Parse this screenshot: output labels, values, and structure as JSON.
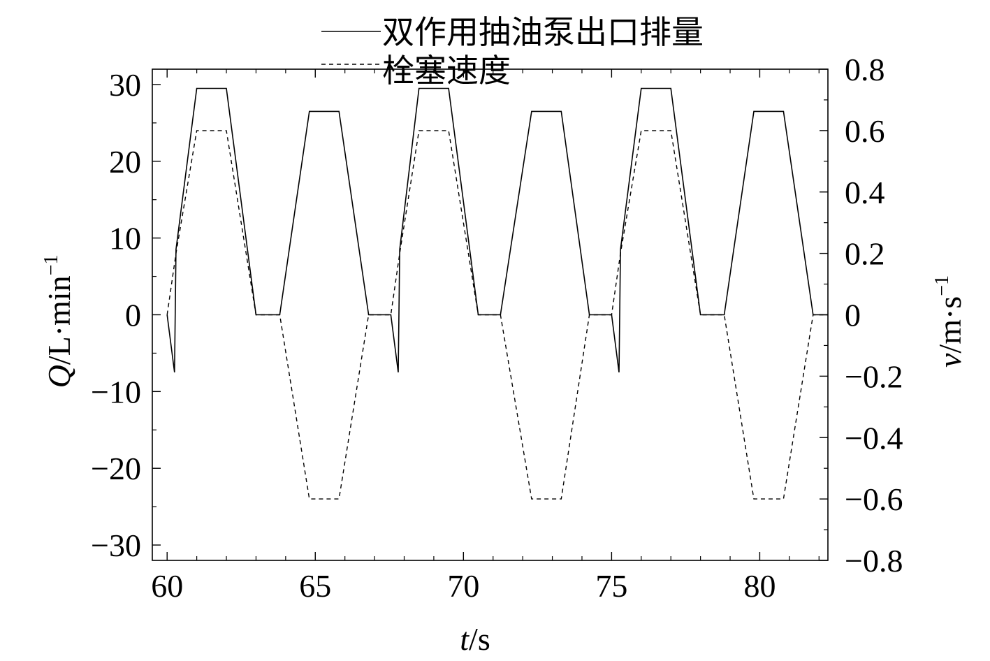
{
  "chart_data": {
    "type": "line",
    "title": "",
    "legend": {
      "placement": "top-center",
      "entries": [
        {
          "label": "双作用抽油泵出口排量",
          "style": "solid"
        },
        {
          "label": "栓塞速度",
          "style": "dashed"
        }
      ]
    },
    "xlabel": {
      "symbol": "t",
      "unit": "/s"
    },
    "ylabel_left": {
      "symbol": "Q",
      "unit": "/L·min",
      "sup": "−1"
    },
    "ylabel_right": {
      "symbol": "v",
      "unit": "/m·s",
      "sup": "−1"
    },
    "xlim": [
      59.5,
      82.3
    ],
    "ylim_left": [
      -32,
      32
    ],
    "ylim_right": [
      -0.8,
      0.8
    ],
    "xticks": [
      60,
      65,
      70,
      75,
      80
    ],
    "xtick_labels": [
      "60",
      "65",
      "70",
      "75",
      "80"
    ],
    "yticks_left": [
      30,
      20,
      10,
      0,
      -10,
      -20,
      -30
    ],
    "ytick_labels_left": [
      "30",
      "20",
      "10",
      "0",
      "−10",
      "−20",
      "−30"
    ],
    "yticks_right": [
      0.8,
      0.6,
      0.4,
      0.2,
      0,
      -0.2,
      -0.4,
      -0.6,
      -0.8
    ],
    "ytick_labels_right": [
      "0.8",
      "0.6",
      "0.4",
      "0.2",
      "0",
      "−0.2",
      "−0.4",
      "−0.6",
      "−0.8"
    ],
    "grid": false,
    "series": [
      {
        "name": "双作用抽油泵出口排量",
        "axis": "left",
        "style": "solid",
        "x": [
          60.0,
          60.25,
          60.3,
          61.0,
          62.0,
          63.0,
          63.8,
          64.8,
          65.8,
          66.8,
          67.55,
          67.8,
          67.85,
          68.5,
          69.5,
          70.5,
          71.25,
          72.3,
          73.3,
          74.25,
          75.0,
          75.25,
          75.3,
          76.0,
          77.0,
          78.0,
          78.8,
          79.8,
          80.8,
          81.8,
          82.3
        ],
        "y": [
          0,
          -7.5,
          8.5,
          29.5,
          29.5,
          0,
          0,
          26.5,
          26.5,
          0,
          0,
          -7.5,
          8.5,
          29.5,
          29.5,
          0,
          0,
          26.5,
          26.5,
          0,
          0,
          -7.5,
          8.5,
          29.5,
          29.5,
          0,
          0,
          26.5,
          26.5,
          0,
          0
        ]
      },
      {
        "name": "栓塞速度",
        "axis": "right",
        "style": "dashed",
        "x": [
          60.0,
          60.3,
          61.0,
          62.0,
          63.0,
          63.8,
          64.8,
          65.8,
          66.8,
          67.55,
          67.85,
          68.5,
          69.5,
          70.5,
          71.25,
          72.3,
          73.3,
          74.25,
          75.0,
          75.3,
          76.0,
          77.0,
          78.0,
          78.8,
          79.8,
          80.8,
          81.8,
          82.3
        ],
        "y": [
          0,
          0.2,
          0.6,
          0.6,
          0,
          0,
          -0.6,
          -0.6,
          0,
          0,
          0.2,
          0.6,
          0.6,
          0,
          0,
          -0.6,
          -0.6,
          0,
          0,
          0.2,
          0.6,
          0.6,
          0,
          0,
          -0.6,
          -0.6,
          0,
          0
        ]
      }
    ]
  }
}
